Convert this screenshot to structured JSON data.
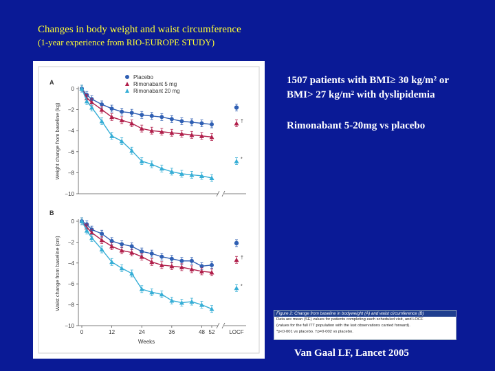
{
  "slide": {
    "title": "Changes in body weight and waist circumference",
    "subtitle": "(1-year experience from RIO-EUROPE STUDY)",
    "patients_line1": "1507 patients with BMI≥ 30 kg/m² or",
    "patients_line2": "BMI> 27 kg/m² with dyslipidemia",
    "treatment": "Rimonabant 5-20mg vs placebo",
    "citation": "Van Gaal LF, Lancet 2005"
  },
  "figure_caption": {
    "heading": "Figure 2: Change from baseline in bodyweight (A) and waist circumference (B)",
    "body_1": "Data are mean (SE) values for patients completing each scheduled visit, and LOCF",
    "body_2": "(values for the full ITT population with the last observations carried forward).",
    "body_3": "*p<0·001 vs placebo. †p=0·002 vs placebo."
  },
  "colors": {
    "background": "#0a1a96",
    "title": "#ffff33",
    "placebo": "#2f5fb3",
    "rimonabant5": "#b01e4a",
    "rimonabant20": "#36aed6"
  },
  "chart_data": [
    {
      "type": "line",
      "panel_label": "A",
      "ylabel": "Weight change from baseline (kg)",
      "xlabel": "",
      "ylim": [
        -10,
        0
      ],
      "yticks": [
        "0",
        "−2",
        "−4",
        "−6",
        "−8",
        "−10"
      ],
      "x": [
        0,
        2,
        4,
        8,
        12,
        16,
        20,
        24,
        28,
        32,
        36,
        40,
        44,
        48,
        52
      ],
      "series": [
        {
          "name": "Placebo",
          "values": [
            0,
            -0.6,
            -1.0,
            -1.5,
            -1.9,
            -2.2,
            -2.3,
            -2.5,
            -2.6,
            -2.7,
            -2.9,
            -3.1,
            -3.2,
            -3.3,
            -3.4
          ],
          "locf": -1.8,
          "locf_mark": ""
        },
        {
          "name": "Rimonabant 5 mg",
          "values": [
            0,
            -0.9,
            -1.3,
            -2.0,
            -2.7,
            -3.0,
            -3.3,
            -3.8,
            -4.0,
            -4.1,
            -4.2,
            -4.3,
            -4.4,
            -4.5,
            -4.6
          ],
          "locf": -3.3,
          "locf_mark": "†"
        },
        {
          "name": "Rimonabant 20 mg",
          "values": [
            0,
            -1.2,
            -1.8,
            -3.1,
            -4.5,
            -5.0,
            -5.9,
            -6.9,
            -7.2,
            -7.6,
            -7.9,
            -8.1,
            -8.2,
            -8.3,
            -8.5
          ],
          "locf": -6.9,
          "locf_mark": "*"
        }
      ]
    },
    {
      "type": "line",
      "panel_label": "B",
      "ylabel": "Waist change from baseline (cm)",
      "xlabel": "Weeks",
      "ylim": [
        -10,
        0
      ],
      "yticks": [
        "0",
        "−2",
        "−4",
        "−6",
        "−8",
        "−10"
      ],
      "xticks": [
        "0",
        "12",
        "24",
        "36",
        "48",
        "52",
        "LOCF"
      ],
      "x": [
        0,
        2,
        4,
        8,
        12,
        16,
        20,
        24,
        28,
        32,
        36,
        40,
        44,
        48,
        52
      ],
      "series": [
        {
          "name": "Placebo",
          "values": [
            0,
            -0.3,
            -0.8,
            -1.2,
            -1.9,
            -2.2,
            -2.4,
            -2.9,
            -3.1,
            -3.4,
            -3.6,
            -3.8,
            -3.8,
            -4.3,
            -4.2
          ],
          "locf": -2.1,
          "locf_mark": ""
        },
        {
          "name": "Rimonabant 5 mg",
          "values": [
            0,
            -0.6,
            -1.1,
            -1.8,
            -2.4,
            -2.8,
            -3.0,
            -3.4,
            -3.9,
            -4.2,
            -4.3,
            -4.4,
            -4.6,
            -4.8,
            -4.9
          ],
          "locf": -3.7,
          "locf_mark": "†"
        },
        {
          "name": "Rimonabant 20 mg",
          "values": [
            0,
            -0.9,
            -1.6,
            -2.7,
            -3.9,
            -4.5,
            -5.0,
            -6.5,
            -6.8,
            -7.0,
            -7.6,
            -7.8,
            -7.7,
            -8.0,
            -8.4
          ],
          "locf": -6.4,
          "locf_mark": "*"
        }
      ]
    }
  ]
}
